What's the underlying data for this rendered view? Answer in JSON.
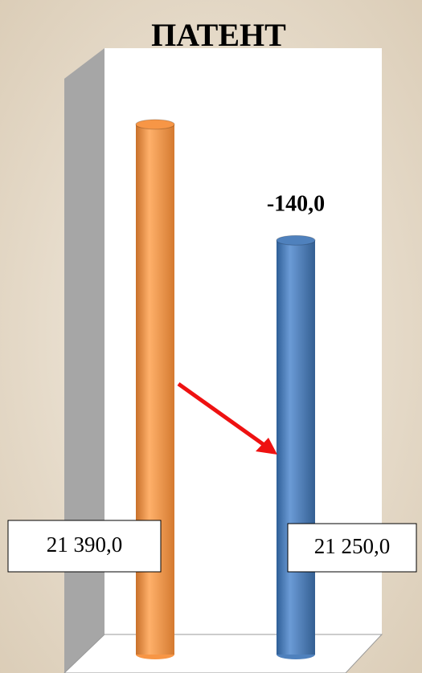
{
  "chart_data": {
    "type": "bar",
    "title": "ПАТЕНТ",
    "categories": [
      null,
      null
    ],
    "values": [
      21390.0,
      21250.0
    ],
    "value_labels": [
      "21 390,0",
      "21 250,0"
    ],
    "colors": [
      "#f79646",
      "#4f81bd"
    ],
    "annotation": "-140,0",
    "ylim": [
      20750,
      21450
    ]
  }
}
